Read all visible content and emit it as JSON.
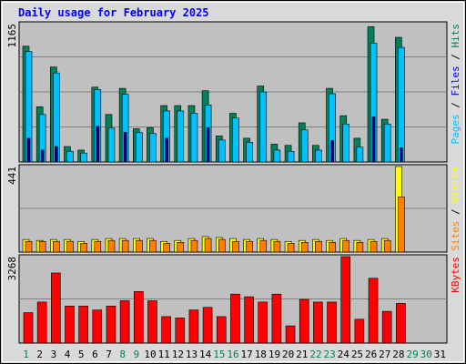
{
  "chart_data": {
    "type": "bar",
    "title": "Daily usage for February 2025",
    "colors": {
      "title": "#0000ff",
      "hits": "#00805c",
      "files": "#00c0ff",
      "pages": "#00008c",
      "visits": "#ffff00",
      "sites": "#ff8000",
      "kbytes": "#ff0000",
      "panel_bg": "#c0c0c0",
      "frame_bg": "#dadada",
      "day_weekday": "#00805c",
      "day_weekend": "#000000"
    },
    "days": [
      "1",
      "2",
      "3",
      "4",
      "5",
      "6",
      "7",
      "8",
      "9",
      "10",
      "11",
      "12",
      "13",
      "14",
      "15",
      "16",
      "17",
      "18",
      "19",
      "20",
      "21",
      "22",
      "23",
      "24",
      "25",
      "26",
      "27",
      "28",
      "29",
      "30",
      "31"
    ],
    "day_types": [
      "weekday",
      "weekend",
      "weekend",
      "weekend",
      "weekend",
      "weekend",
      "weekend",
      "weekday",
      "weekday",
      "weekend",
      "weekend",
      "weekend",
      "weekend",
      "weekend",
      "weekday",
      "weekday",
      "weekend",
      "weekend",
      "weekend",
      "weekend",
      "weekend",
      "weekday",
      "weekday",
      "weekend",
      "weekend",
      "weekend",
      "weekend",
      "weekend",
      "weekday",
      "weekday",
      "weekend"
    ],
    "panels": [
      {
        "id": "hits_files_pages",
        "max_label": "1165",
        "ylim": [
          0,
          1165
        ],
        "legend": [
          {
            "text": "Pages",
            "color": "#00c0ff"
          },
          {
            "text": " / ",
            "color": "#000000"
          },
          {
            "text": "Files",
            "color": "#0000ff"
          },
          {
            "text": " / ",
            "color": "#000000"
          },
          {
            "text": "Hits",
            "color": "#00805c"
          }
        ],
        "series": [
          {
            "name": "Hits",
            "color": "#00805c",
            "values": [
              975,
              465,
              800,
              130,
              100,
              630,
              400,
              620,
              280,
              290,
              475,
              475,
              475,
              600,
              220,
              410,
              200,
              640,
              150,
              140,
              330,
              140,
              620,
              390,
              200,
              1140,
              360,
              1050,
              0,
              0,
              0
            ]
          },
          {
            "name": "Files",
            "color": "#00c0ff",
            "values": [
              930,
              400,
              750,
              90,
              75,
              610,
              285,
              570,
              250,
              240,
              430,
              430,
              410,
              480,
              185,
              370,
              165,
              590,
              100,
              90,
              270,
              100,
              575,
              320,
              125,
              1000,
              320,
              965,
              0,
              0,
              0
            ]
          },
          {
            "name": "Pages",
            "color": "#00008c",
            "values": [
              200,
              100,
              130,
              0,
              0,
              300,
              0,
              250,
              0,
              0,
              200,
              0,
              0,
              290,
              0,
              0,
              0,
              0,
              0,
              0,
              0,
              0,
              180,
              0,
              0,
              380,
              0,
              120,
              0,
              0,
              0
            ]
          }
        ]
      },
      {
        "id": "visits_sites",
        "max_label": "441",
        "ylim": [
          0,
          441
        ],
        "legend": [
          {
            "text": "Sites",
            "color": "#ff8000"
          },
          {
            "text": " / ",
            "color": "#000000"
          },
          {
            "text": "Visits",
            "color": "#ffff00"
          }
        ],
        "series": [
          {
            "name": "Visits",
            "color": "#ffff00",
            "values": [
              65,
              60,
              65,
              65,
              55,
              65,
              70,
              70,
              70,
              70,
              55,
              60,
              70,
              80,
              75,
              70,
              65,
              70,
              65,
              55,
              60,
              65,
              60,
              70,
              60,
              65,
              70,
              441,
              0,
              0,
              0
            ]
          },
          {
            "name": "Sites",
            "color": "#ff8000",
            "values": [
              55,
              55,
              55,
              55,
              45,
              55,
              60,
              60,
              60,
              60,
              45,
              50,
              60,
              70,
              65,
              55,
              55,
              60,
              55,
              45,
              50,
              55,
              50,
              60,
              50,
              55,
              60,
              285,
              0,
              0,
              0
            ]
          }
        ]
      },
      {
        "id": "kbytes",
        "max_label": "3268",
        "ylim": [
          0,
          3268
        ],
        "legend": [
          {
            "text": "KBytes",
            "color": "#ff0000"
          }
        ],
        "series": [
          {
            "name": "KBytes",
            "color": "#ff0000",
            "values": [
              1150,
              1550,
              2650,
              1400,
              1400,
              1250,
              1400,
              1600,
              1950,
              1600,
              1000,
              950,
              1250,
              1350,
              1000,
              1850,
              1750,
              1550,
              1850,
              650,
              1650,
              1550,
              1550,
              3268,
              900,
              2450,
              1200,
              1500,
              0,
              0,
              0
            ]
          }
        ]
      }
    ]
  }
}
